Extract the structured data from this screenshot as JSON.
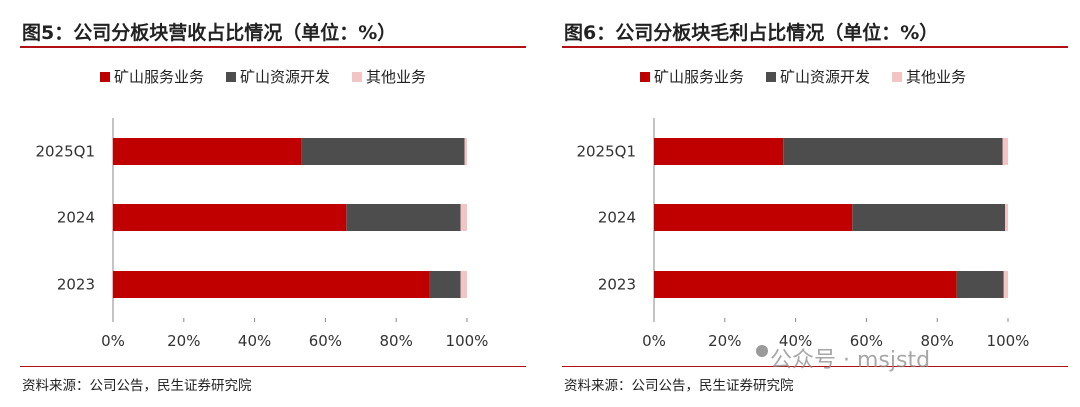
{
  "watermark": "公众号 · msjstd",
  "chart_data": [
    {
      "type": "bar",
      "orientation": "horizontal",
      "stacked": true,
      "title": "图5：公司分板块营收占比情况（单位：%）",
      "source": "资料来源：公司公告，民生证券研究院",
      "categories": [
        "2025Q1",
        "2024",
        "2023"
      ],
      "series": [
        {
          "name": "矿山服务业务",
          "color": "#c00000",
          "values": [
            53.3,
            65.9,
            89.5
          ]
        },
        {
          "name": "矿山资源开发",
          "color": "#4d4d4d",
          "values": [
            46.0,
            32.3,
            8.7
          ]
        },
        {
          "name": "其他业务",
          "color": "#f2c4c4",
          "values": [
            0.7,
            1.8,
            1.8
          ]
        }
      ],
      "xlim": [
        0,
        100
      ],
      "xticks": [
        "0%",
        "20%",
        "40%",
        "60%",
        "80%",
        "100%"
      ],
      "legend": "top"
    },
    {
      "type": "bar",
      "orientation": "horizontal",
      "stacked": true,
      "title": "图6：公司分板块毛利占比情况（单位：%）",
      "source": "资料来源：公司公告，民生证券研究院",
      "categories": [
        "2025Q1",
        "2024",
        "2023"
      ],
      "series": [
        {
          "name": "矿山服务业务",
          "color": "#c00000",
          "values": [
            36.5,
            56.0,
            85.5
          ]
        },
        {
          "name": "矿山资源开发",
          "color": "#4d4d4d",
          "values": [
            62.0,
            43.2,
            13.3
          ]
        },
        {
          "name": "其他业务",
          "color": "#f2c4c4",
          "values": [
            1.5,
            0.8,
            1.2
          ]
        }
      ],
      "xlim": [
        0,
        100
      ],
      "xticks": [
        "0%",
        "20%",
        "40%",
        "60%",
        "80%",
        "100%"
      ],
      "legend": "top"
    }
  ]
}
